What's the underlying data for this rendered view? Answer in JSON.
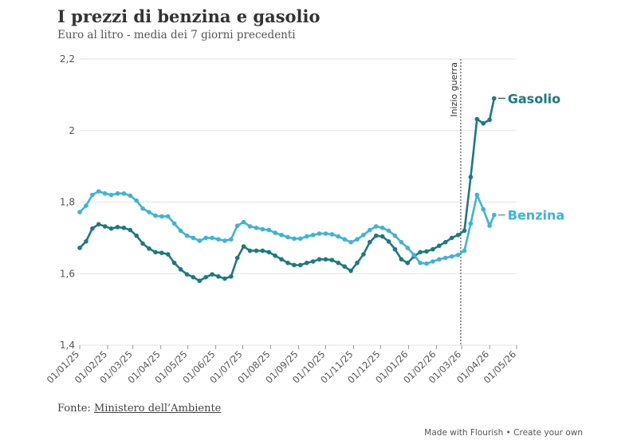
{
  "header": {
    "title": "I prezzi di benzina e gasolio",
    "subtitle": "Euro al litro - media dei 7 giorni precedenti"
  },
  "footer": {
    "source_label": "Fonte:",
    "source_link": "Ministero dell’Ambiente",
    "made_with": "Made with Flourish",
    "separator": "•",
    "create_own": "Create your own"
  },
  "colors": {
    "gasolio": "#1a7a80",
    "benzina": "#3cb4d8",
    "grid": "#e3e3e3",
    "text": "#444444"
  },
  "chart_data": {
    "type": "line",
    "title": "I prezzi di benzina e gasolio",
    "subtitle": "Euro al litro - media dei 7 giorni precedenti",
    "xlabel": "",
    "ylabel": "",
    "ylim": [
      1.4,
      2.2
    ],
    "yticks": [
      1.4,
      1.6,
      1.8,
      2,
      2.2
    ],
    "ytick_labels": [
      "1,4",
      "1,6",
      "1,8",
      "2",
      "2,2"
    ],
    "xlim": [
      "2025-01-01",
      "2026-05-01"
    ],
    "xticks": [
      "2025-01-01",
      "2025-02-01",
      "2025-03-01",
      "2025-04-01",
      "2025-05-01",
      "2025-06-01",
      "2025-07-01",
      "2025-08-01",
      "2025-09-01",
      "2025-10-01",
      "2025-11-01",
      "2025-12-01",
      "2026-01-01",
      "2026-02-01",
      "2026-03-01",
      "2026-04-01",
      "2026-05-01"
    ],
    "xtick_labels": [
      "01/01/25",
      "01/02/25",
      "01/03/25",
      "01/04/25",
      "01/05/25",
      "01/06/25",
      "01/07/25",
      "01/08/25",
      "01/09/25",
      "01/10/25",
      "01/11/25",
      "01/12/25",
      "01/01/26",
      "01/02/26",
      "01/03/26",
      "01/04/26",
      "01/05/26"
    ],
    "grid": true,
    "annotations": [
      {
        "date": "2026-02-28",
        "label": "Inizio guerra"
      }
    ],
    "series": [
      {
        "name": "Gasolio",
        "points": [
          [
            "2025-01-01",
            1.672
          ],
          [
            "2025-01-08",
            1.69
          ],
          [
            "2025-01-15",
            1.726
          ],
          [
            "2025-01-22",
            1.738
          ],
          [
            "2025-01-29",
            1.732
          ],
          [
            "2025-02-05",
            1.726
          ],
          [
            "2025-02-12",
            1.73
          ],
          [
            "2025-02-19",
            1.728
          ],
          [
            "2025-02-26",
            1.722
          ],
          [
            "2025-03-05",
            1.706
          ],
          [
            "2025-03-12",
            1.684
          ],
          [
            "2025-03-19",
            1.67
          ],
          [
            "2025-03-26",
            1.66
          ],
          [
            "2025-04-02",
            1.658
          ],
          [
            "2025-04-09",
            1.654
          ],
          [
            "2025-04-16",
            1.63
          ],
          [
            "2025-04-23",
            1.612
          ],
          [
            "2025-04-30",
            1.598
          ],
          [
            "2025-05-07",
            1.59
          ],
          [
            "2025-05-14",
            1.58
          ],
          [
            "2025-05-21",
            1.59
          ],
          [
            "2025-05-28",
            1.598
          ],
          [
            "2025-06-04",
            1.592
          ],
          [
            "2025-06-11",
            1.586
          ],
          [
            "2025-06-18",
            1.592
          ],
          [
            "2025-06-25",
            1.644
          ],
          [
            "2025-07-02",
            1.676
          ],
          [
            "2025-07-09",
            1.664
          ],
          [
            "2025-07-16",
            1.664
          ],
          [
            "2025-07-23",
            1.664
          ],
          [
            "2025-07-30",
            1.66
          ],
          [
            "2025-08-06",
            1.65
          ],
          [
            "2025-08-13",
            1.64
          ],
          [
            "2025-08-20",
            1.63
          ],
          [
            "2025-08-27",
            1.624
          ],
          [
            "2025-09-03",
            1.624
          ],
          [
            "2025-09-10",
            1.63
          ],
          [
            "2025-09-17",
            1.634
          ],
          [
            "2025-09-24",
            1.64
          ],
          [
            "2025-10-01",
            1.64
          ],
          [
            "2025-10-08",
            1.638
          ],
          [
            "2025-10-15",
            1.63
          ],
          [
            "2025-10-22",
            1.62
          ],
          [
            "2025-10-29",
            1.608
          ],
          [
            "2025-11-05",
            1.63
          ],
          [
            "2025-11-12",
            1.654
          ],
          [
            "2025-11-19",
            1.688
          ],
          [
            "2025-11-26",
            1.706
          ],
          [
            "2025-12-03",
            1.704
          ],
          [
            "2025-12-10",
            1.69
          ],
          [
            "2025-12-17",
            1.668
          ],
          [
            "2025-12-24",
            1.64
          ],
          [
            "2025-12-31",
            1.63
          ],
          [
            "2026-01-07",
            1.648
          ],
          [
            "2026-01-14",
            1.66
          ],
          [
            "2026-01-21",
            1.662
          ],
          [
            "2026-01-28",
            1.668
          ],
          [
            "2026-02-04",
            1.678
          ],
          [
            "2026-02-11",
            1.688
          ],
          [
            "2026-02-18",
            1.7
          ],
          [
            "2026-02-25",
            1.708
          ],
          [
            "2026-03-04",
            1.72
          ],
          [
            "2026-03-11",
            1.87
          ],
          [
            "2026-03-18",
            2.032
          ],
          [
            "2026-03-25",
            2.02
          ],
          [
            "2026-04-01",
            2.03
          ],
          [
            "2026-04-06",
            2.09
          ]
        ]
      },
      {
        "name": "Benzina",
        "points": [
          [
            "2025-01-01",
            1.772
          ],
          [
            "2025-01-08",
            1.79
          ],
          [
            "2025-01-15",
            1.82
          ],
          [
            "2025-01-22",
            1.83
          ],
          [
            "2025-01-29",
            1.824
          ],
          [
            "2025-02-05",
            1.82
          ],
          [
            "2025-02-12",
            1.824
          ],
          [
            "2025-02-19",
            1.824
          ],
          [
            "2025-02-26",
            1.818
          ],
          [
            "2025-03-05",
            1.804
          ],
          [
            "2025-03-12",
            1.782
          ],
          [
            "2025-03-19",
            1.772
          ],
          [
            "2025-03-26",
            1.762
          ],
          [
            "2025-04-02",
            1.76
          ],
          [
            "2025-04-09",
            1.76
          ],
          [
            "2025-04-16",
            1.74
          ],
          [
            "2025-04-23",
            1.72
          ],
          [
            "2025-04-30",
            1.706
          ],
          [
            "2025-05-07",
            1.7
          ],
          [
            "2025-05-14",
            1.692
          ],
          [
            "2025-05-21",
            1.7
          ],
          [
            "2025-05-28",
            1.7
          ],
          [
            "2025-06-04",
            1.696
          ],
          [
            "2025-06-11",
            1.692
          ],
          [
            "2025-06-18",
            1.696
          ],
          [
            "2025-06-25",
            1.734
          ],
          [
            "2025-07-02",
            1.744
          ],
          [
            "2025-07-09",
            1.732
          ],
          [
            "2025-07-16",
            1.728
          ],
          [
            "2025-07-23",
            1.724
          ],
          [
            "2025-07-30",
            1.722
          ],
          [
            "2025-08-06",
            1.714
          ],
          [
            "2025-08-13",
            1.708
          ],
          [
            "2025-08-20",
            1.702
          ],
          [
            "2025-08-27",
            1.698
          ],
          [
            "2025-09-03",
            1.698
          ],
          [
            "2025-09-10",
            1.704
          ],
          [
            "2025-09-17",
            1.708
          ],
          [
            "2025-09-24",
            1.712
          ],
          [
            "2025-10-01",
            1.712
          ],
          [
            "2025-10-08",
            1.71
          ],
          [
            "2025-10-15",
            1.704
          ],
          [
            "2025-10-22",
            1.696
          ],
          [
            "2025-10-29",
            1.688
          ],
          [
            "2025-11-05",
            1.696
          ],
          [
            "2025-11-12",
            1.708
          ],
          [
            "2025-11-19",
            1.722
          ],
          [
            "2025-11-26",
            1.732
          ],
          [
            "2025-12-03",
            1.728
          ],
          [
            "2025-12-10",
            1.72
          ],
          [
            "2025-12-17",
            1.706
          ],
          [
            "2025-12-24",
            1.688
          ],
          [
            "2025-12-31",
            1.672
          ],
          [
            "2026-01-07",
            1.652
          ],
          [
            "2026-01-14",
            1.63
          ],
          [
            "2026-01-21",
            1.628
          ],
          [
            "2026-01-28",
            1.634
          ],
          [
            "2026-02-04",
            1.64
          ],
          [
            "2026-02-11",
            1.644
          ],
          [
            "2026-02-18",
            1.648
          ],
          [
            "2026-02-25",
            1.652
          ],
          [
            "2026-03-04",
            1.664
          ],
          [
            "2026-03-11",
            1.74
          ],
          [
            "2026-03-18",
            1.82
          ],
          [
            "2026-03-25",
            1.78
          ],
          [
            "2026-04-01",
            1.734
          ],
          [
            "2026-04-06",
            1.764
          ]
        ]
      }
    ]
  }
}
